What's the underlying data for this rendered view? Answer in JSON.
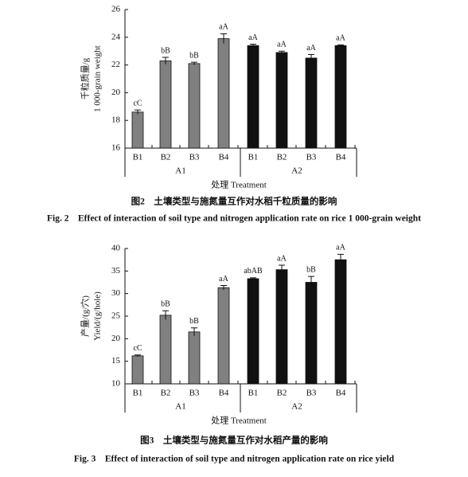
{
  "chart_data": [
    {
      "type": "bar",
      "ylabel": [
        "千粒质量/g",
        "1 000-grain weight"
      ],
      "xlabel": "处理 Treatment",
      "caption_cn": "图2　土壤类型与施氮量互作对水稻千粒质量的影响",
      "caption_en": "Fig. 2　Effect of interaction of soil type and nitrogen application rate on rice 1 000-grain weight",
      "ylim": [
        16,
        26
      ],
      "yticks": [
        16,
        18,
        20,
        22,
        24,
        26
      ],
      "groups": [
        {
          "label": "A1",
          "color": "#808080",
          "categories": [
            "B1",
            "B2",
            "B3",
            "B4"
          ],
          "values": [
            18.6,
            22.3,
            22.1,
            23.9
          ],
          "errors": [
            0.15,
            0.25,
            0.1,
            0.35
          ],
          "letters": [
            "cC",
            "bB",
            "bB",
            "aA"
          ]
        },
        {
          "label": "A2",
          "color": "#111111",
          "categories": [
            "B1",
            "B2",
            "B3",
            "B4"
          ],
          "values": [
            23.4,
            22.9,
            22.5,
            23.4
          ],
          "errors": [
            0.1,
            0.1,
            0.25,
            0.05
          ],
          "letters": [
            "aA",
            "aA",
            "aA",
            "aA"
          ]
        }
      ]
    },
    {
      "type": "bar",
      "ylabel": [
        "产量/(g/穴)",
        "Yield/(g/hole)"
      ],
      "xlabel": "处理 Treatment",
      "caption_cn": "图3　土壤类型与施氮量互作对水稻产量的影响",
      "caption_en": "Fig. 3　Effect of interaction of soil type and nitrogen application rate on rice yield",
      "ylim": [
        10,
        40
      ],
      "yticks": [
        10,
        15,
        20,
        25,
        30,
        35,
        40
      ],
      "groups": [
        {
          "label": "A1",
          "color": "#808080",
          "categories": [
            "B1",
            "B2",
            "B3",
            "B4"
          ],
          "values": [
            16.2,
            25.2,
            21.5,
            31.3
          ],
          "errors": [
            0.2,
            1.0,
            0.9,
            0.5
          ],
          "letters": [
            "cC",
            "bB",
            "bB",
            "aA"
          ]
        },
        {
          "label": "A2",
          "color": "#111111",
          "categories": [
            "B1",
            "B2",
            "B3",
            "B4"
          ],
          "values": [
            33.3,
            35.3,
            32.5,
            37.5
          ],
          "errors": [
            0.2,
            1.0,
            1.3,
            1.2
          ],
          "letters": [
            "abAB",
            "aA",
            "bB",
            "aA"
          ]
        }
      ]
    }
  ]
}
